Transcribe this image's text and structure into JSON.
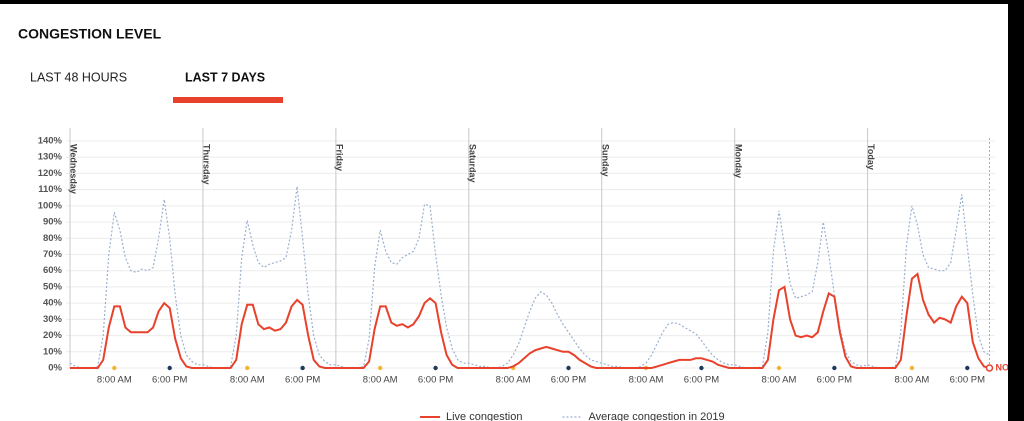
{
  "header": {
    "title": "CONGESTION LEVEL"
  },
  "tabs": [
    "LAST 48 HOURS",
    "LAST 7 DAYS"
  ],
  "chart_data": {
    "type": "line",
    "x": [
      0,
      1,
      2,
      3,
      4,
      5,
      6,
      7,
      8,
      9,
      10,
      11,
      12,
      13,
      14,
      15,
      16,
      17,
      18,
      19,
      20,
      21,
      22,
      23,
      24,
      25,
      26,
      27,
      28,
      29,
      30,
      31,
      32,
      33,
      34,
      35,
      36,
      37,
      38,
      39,
      40,
      41,
      42,
      43,
      44,
      45,
      46,
      47,
      48,
      49,
      50,
      51,
      52,
      53,
      54,
      55,
      56,
      57,
      58,
      59,
      60,
      61,
      62,
      63,
      64,
      65,
      66,
      67,
      68,
      69,
      70,
      71,
      72,
      73,
      74,
      75,
      76,
      77,
      78,
      79,
      80,
      81,
      82,
      83,
      84,
      85,
      86,
      87,
      88,
      89,
      90,
      91,
      92,
      93,
      94,
      95,
      96,
      97,
      98,
      99,
      100,
      101,
      102,
      103,
      104,
      105,
      106,
      107,
      108,
      109,
      110,
      111,
      112,
      113,
      114,
      115,
      116,
      117,
      118,
      119,
      120,
      121,
      122,
      123,
      124,
      125,
      126,
      127,
      128,
      129,
      130,
      131,
      132,
      133,
      134,
      135,
      136,
      137,
      138,
      139,
      140,
      141,
      142,
      143,
      144,
      145,
      146,
      147,
      148,
      149,
      150,
      151,
      152,
      153,
      154,
      155,
      156,
      157,
      158,
      159,
      160,
      161,
      162,
      163,
      164,
      165,
      166
    ],
    "series": [
      {
        "name": "Live congestion",
        "color": "#e8412c",
        "style": "solid",
        "values": [
          0,
          0,
          0,
          0,
          0,
          0,
          5,
          25,
          38,
          38,
          25,
          22,
          22,
          22,
          22,
          25,
          35,
          40,
          37,
          18,
          6,
          1,
          0,
          0,
          0,
          0,
          0,
          0,
          0,
          0,
          5,
          27,
          39,
          39,
          27,
          24,
          25,
          23,
          24,
          28,
          38,
          42,
          39,
          20,
          5,
          1,
          0,
          0,
          0,
          0,
          0,
          0,
          0,
          0,
          4,
          24,
          38,
          38,
          28,
          26,
          27,
          25,
          27,
          32,
          40,
          43,
          40,
          22,
          8,
          2,
          0,
          0,
          0,
          0,
          0,
          0,
          0,
          0,
          0,
          0,
          1,
          3,
          6,
          9,
          11,
          12,
          13,
          12,
          11,
          10,
          10,
          8,
          5,
          3,
          1,
          0,
          0,
          0,
          0,
          0,
          0,
          0,
          0,
          0,
          0,
          0,
          1,
          2,
          3,
          4,
          5,
          5,
          5,
          6,
          6,
          5,
          4,
          2,
          1,
          0,
          0,
          0,
          0,
          0,
          0,
          0,
          5,
          30,
          48,
          50,
          30,
          20,
          19,
          20,
          19,
          22,
          35,
          46,
          44,
          22,
          7,
          1,
          0,
          0,
          0,
          0,
          0,
          0,
          0,
          0,
          5,
          32,
          55,
          58,
          42,
          33,
          28,
          31,
          30,
          28,
          38,
          44,
          40,
          16,
          6,
          1,
          0
        ]
      },
      {
        "name": "Average congestion in 2019",
        "color": "#9ab0cf",
        "style": "dotted",
        "values": [
          3,
          1,
          0,
          0,
          0,
          1,
          20,
          70,
          96,
          85,
          68,
          60,
          59,
          61,
          60,
          62,
          80,
          104,
          80,
          45,
          20,
          8,
          4,
          2,
          2,
          1,
          0,
          0,
          0,
          1,
          20,
          68,
          91,
          76,
          65,
          62,
          64,
          65,
          66,
          68,
          85,
          112,
          80,
          45,
          20,
          8,
          4,
          2,
          2,
          1,
          0,
          0,
          0,
          1,
          18,
          62,
          85,
          72,
          65,
          64,
          68,
          70,
          72,
          80,
          101,
          100,
          70,
          45,
          25,
          12,
          5,
          3,
          3,
          2,
          1,
          1,
          0,
          0,
          1,
          3,
          8,
          15,
          25,
          35,
          43,
          47,
          45,
          40,
          33,
          27,
          22,
          17,
          12,
          8,
          5,
          4,
          3,
          2,
          1,
          1,
          0,
          0,
          0,
          1,
          3,
          8,
          15,
          22,
          27,
          28,
          27,
          25,
          23,
          21,
          17,
          12,
          8,
          5,
          3,
          2,
          2,
          1,
          0,
          0,
          0,
          1,
          22,
          72,
          97,
          75,
          52,
          43,
          44,
          45,
          47,
          65,
          90,
          70,
          45,
          25,
          10,
          4,
          2,
          1,
          2,
          1,
          0,
          0,
          0,
          1,
          22,
          75,
          100,
          88,
          70,
          62,
          61,
          60,
          60,
          65,
          85,
          107,
          75,
          45,
          20,
          10,
          8
        ]
      }
    ],
    "xlim": [
      0,
      167
    ],
    "xticks": [
      {
        "value": 8,
        "label": "8:00 AM"
      },
      {
        "value": 18,
        "label": "6:00 PM"
      },
      {
        "value": 32,
        "label": "8:00 AM"
      },
      {
        "value": 42,
        "label": "6:00 PM"
      },
      {
        "value": 56,
        "label": "8:00 AM"
      },
      {
        "value": 66,
        "label": "6:00 PM"
      },
      {
        "value": 80,
        "label": "8:00 AM"
      },
      {
        "value": 90,
        "label": "6:00 PM"
      },
      {
        "value": 104,
        "label": "8:00 AM"
      },
      {
        "value": 114,
        "label": "6:00 PM"
      },
      {
        "value": 128,
        "label": "8:00 AM"
      },
      {
        "value": 138,
        "label": "6:00 PM"
      },
      {
        "value": 152,
        "label": "8:00 AM"
      },
      {
        "value": 162,
        "label": "6:00 PM"
      }
    ],
    "ylim": [
      0,
      140
    ],
    "yticks": [
      {
        "value": 0,
        "label": "0%"
      },
      {
        "value": 10,
        "label": "10%"
      },
      {
        "value": 20,
        "label": "20%"
      },
      {
        "value": 30,
        "label": "30%"
      },
      {
        "value": 40,
        "label": "40%"
      },
      {
        "value": 50,
        "label": "50%"
      },
      {
        "value": 60,
        "label": "60%"
      },
      {
        "value": 70,
        "label": "70%"
      },
      {
        "value": 80,
        "label": "80%"
      },
      {
        "value": 90,
        "label": "90%"
      },
      {
        "value": 100,
        "label": "100%"
      },
      {
        "value": 110,
        "label": "110%"
      },
      {
        "value": 120,
        "label": "120%"
      },
      {
        "value": 130,
        "label": "130%"
      },
      {
        "value": 140,
        "label": "140%"
      }
    ],
    "day_labels": [
      {
        "x": 0,
        "label": "Wednesday"
      },
      {
        "x": 24,
        "label": "Thursday"
      },
      {
        "x": 48,
        "label": "Friday"
      },
      {
        "x": 72,
        "label": "Saturday"
      },
      {
        "x": 96,
        "label": "Sunday"
      },
      {
        "x": 120,
        "label": "Monday"
      },
      {
        "x": 144,
        "label": "Today"
      }
    ],
    "now_label": "NOW",
    "grid": true,
    "legend": "bottom"
  }
}
